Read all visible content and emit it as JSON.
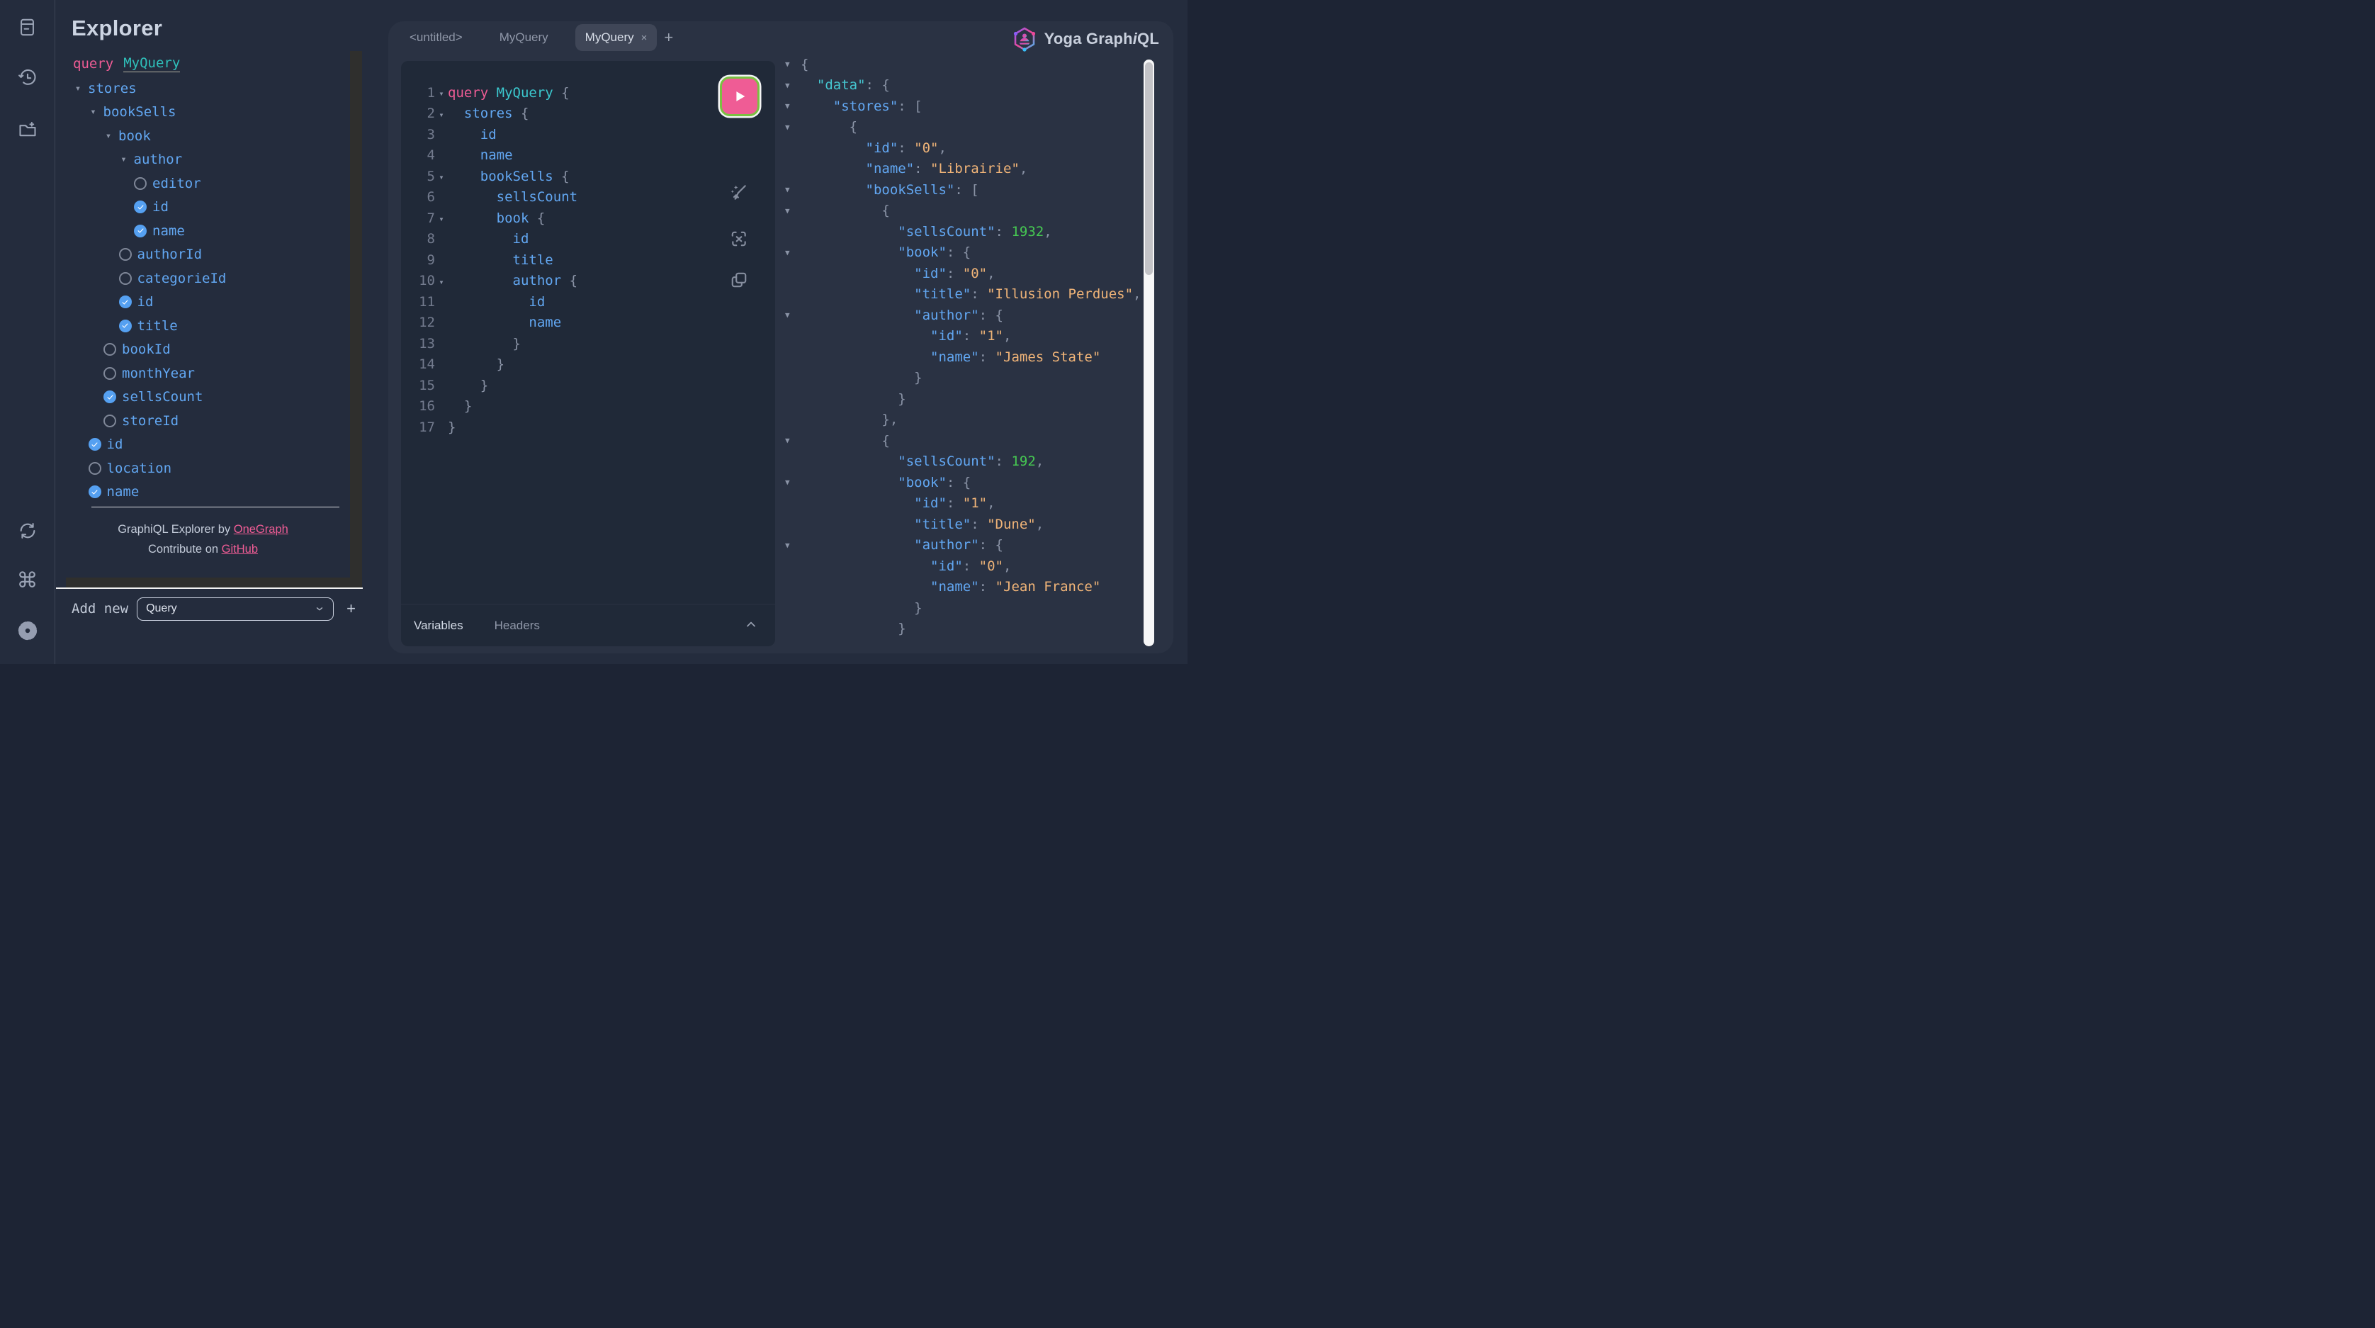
{
  "colors": {
    "accent_pink": "#ef5c95",
    "teal": "#3bc9cf",
    "field_blue": "#62a7f2",
    "string_orange": "#f0b478",
    "number_green": "#46c952",
    "punctuation_gray": "#8a93a6",
    "checkbox_blue": "#55a0f1",
    "run_border_green": "#7ac142",
    "page_bg": "#242c3d",
    "panel_bg": "#202938"
  },
  "sidebar": {
    "icons": [
      {
        "name": "docs-icon"
      },
      {
        "name": "history-icon"
      },
      {
        "name": "folder-add-icon"
      },
      {
        "name": "refetch-icon"
      },
      {
        "name": "shortcut-keys-icon"
      },
      {
        "name": "settings-icon"
      }
    ]
  },
  "explorer": {
    "title": "Explorer",
    "operation": {
      "keyword": "query",
      "name": "MyQuery"
    },
    "tree": [
      {
        "control": "caret",
        "label": "stores",
        "level": 0
      },
      {
        "control": "caret",
        "label": "bookSells",
        "level": 1
      },
      {
        "control": "caret",
        "label": "book",
        "level": 2
      },
      {
        "control": "caret",
        "label": "author",
        "level": 3
      },
      {
        "control": "unchecked",
        "label": "editor",
        "level": 4
      },
      {
        "control": "checked",
        "label": "id",
        "level": 4
      },
      {
        "control": "checked",
        "label": "name",
        "level": 4
      },
      {
        "control": "unchecked",
        "label": "authorId",
        "level": 3
      },
      {
        "control": "unchecked",
        "label": "categorieId",
        "level": 3
      },
      {
        "control": "checked",
        "label": "id",
        "level": 3
      },
      {
        "control": "checked",
        "label": "title",
        "level": 3
      },
      {
        "control": "unchecked",
        "label": "bookId",
        "level": 2
      },
      {
        "control": "unchecked",
        "label": "monthYear",
        "level": 2
      },
      {
        "control": "checked",
        "label": "sellsCount",
        "level": 2
      },
      {
        "control": "unchecked",
        "label": "storeId",
        "level": 2
      },
      {
        "control": "checked",
        "label": "id",
        "level": 1
      },
      {
        "control": "unchecked",
        "label": "location",
        "level": 1
      },
      {
        "control": "checked",
        "label": "name",
        "level": 1
      }
    ],
    "footer": {
      "by_text": "GraphiQL Explorer by ",
      "by_link": "OneGraph",
      "contrib_text": "Contribute on ",
      "contrib_link": "GitHub"
    },
    "add_new": {
      "label": "Add new",
      "selected_option": "Query",
      "plus_label": "+"
    }
  },
  "session": {
    "tabs": [
      {
        "label": "<untitled>",
        "active": false,
        "closable": false
      },
      {
        "label": "MyQuery",
        "active": false,
        "closable": false
      },
      {
        "label": "MyQuery",
        "active": true,
        "closable": true,
        "close_glyph": "×"
      }
    ],
    "new_tab_label": "+",
    "logo": {
      "prefix": "Yoga Graph",
      "italic": "i",
      "suffix": "QL"
    },
    "secondary": {
      "variables": "Variables",
      "headers": "Headers"
    }
  },
  "editor": {
    "lines": [
      {
        "num": 1,
        "caret": true,
        "tokens": [
          [
            "kw",
            "query"
          ],
          [
            "op",
            " MyQuery"
          ],
          [
            "p",
            " {"
          ]
        ]
      },
      {
        "num": 2,
        "caret": true,
        "tokens": [
          [
            "f",
            "  stores"
          ],
          [
            "p",
            " {"
          ]
        ]
      },
      {
        "num": 3,
        "caret": false,
        "tokens": [
          [
            "f",
            "    id"
          ]
        ]
      },
      {
        "num": 4,
        "caret": false,
        "tokens": [
          [
            "f",
            "    name"
          ]
        ]
      },
      {
        "num": 5,
        "caret": true,
        "tokens": [
          [
            "f",
            "    bookSells"
          ],
          [
            "p",
            " {"
          ]
        ]
      },
      {
        "num": 6,
        "caret": false,
        "tokens": [
          [
            "f",
            "      sellsCount"
          ]
        ]
      },
      {
        "num": 7,
        "caret": true,
        "tokens": [
          [
            "f",
            "      book"
          ],
          [
            "p",
            " {"
          ]
        ]
      },
      {
        "num": 8,
        "caret": false,
        "tokens": [
          [
            "f",
            "        id"
          ]
        ]
      },
      {
        "num": 9,
        "caret": false,
        "tokens": [
          [
            "f",
            "        title"
          ]
        ]
      },
      {
        "num": 10,
        "caret": true,
        "tokens": [
          [
            "f",
            "        author"
          ],
          [
            "p",
            " {"
          ]
        ]
      },
      {
        "num": 11,
        "caret": false,
        "tokens": [
          [
            "f",
            "          id"
          ]
        ]
      },
      {
        "num": 12,
        "caret": false,
        "tokens": [
          [
            "f",
            "          name"
          ]
        ]
      },
      {
        "num": 13,
        "caret": false,
        "tokens": [
          [
            "p",
            "        }"
          ]
        ]
      },
      {
        "num": 14,
        "caret": false,
        "tokens": [
          [
            "p",
            "      }"
          ]
        ]
      },
      {
        "num": 15,
        "caret": false,
        "tokens": [
          [
            "p",
            "    }"
          ]
        ]
      },
      {
        "num": 16,
        "caret": false,
        "tokens": [
          [
            "p",
            "  }"
          ]
        ]
      },
      {
        "num": 17,
        "caret": false,
        "tokens": [
          [
            "p",
            "}"
          ]
        ]
      }
    ]
  },
  "response": {
    "lines": [
      {
        "caret": true,
        "tokens": [
          [
            "p",
            "{"
          ]
        ]
      },
      {
        "caret": true,
        "tokens": [
          [
            "kc",
            "  \"data\""
          ],
          [
            "p",
            ": {"
          ]
        ]
      },
      {
        "caret": true,
        "tokens": [
          [
            "k",
            "    \"stores\""
          ],
          [
            "p",
            ": ["
          ]
        ]
      },
      {
        "caret": true,
        "tokens": [
          [
            "p",
            "      {"
          ]
        ]
      },
      {
        "caret": false,
        "tokens": [
          [
            "k",
            "        \"id\""
          ],
          [
            "p",
            ": "
          ],
          [
            "s",
            "\"0\""
          ],
          [
            "p",
            ","
          ]
        ]
      },
      {
        "caret": false,
        "tokens": [
          [
            "k",
            "        \"name\""
          ],
          [
            "p",
            ": "
          ],
          [
            "s",
            "\"Librairie\""
          ],
          [
            "p",
            ","
          ]
        ]
      },
      {
        "caret": true,
        "tokens": [
          [
            "k",
            "        \"bookSells\""
          ],
          [
            "p",
            ": ["
          ]
        ]
      },
      {
        "caret": true,
        "tokens": [
          [
            "p",
            "          {"
          ]
        ]
      },
      {
        "caret": false,
        "tokens": [
          [
            "k",
            "            \"sellsCount\""
          ],
          [
            "p",
            ": "
          ],
          [
            "n",
            "1932"
          ],
          [
            "p",
            ","
          ]
        ]
      },
      {
        "caret": true,
        "tokens": [
          [
            "k",
            "            \"book\""
          ],
          [
            "p",
            ": {"
          ]
        ]
      },
      {
        "caret": false,
        "tokens": [
          [
            "k",
            "              \"id\""
          ],
          [
            "p",
            ": "
          ],
          [
            "s",
            "\"0\""
          ],
          [
            "p",
            ","
          ]
        ]
      },
      {
        "caret": false,
        "tokens": [
          [
            "k",
            "              \"title\""
          ],
          [
            "p",
            ": "
          ],
          [
            "s",
            "\"Illusion Perdues\""
          ],
          [
            "p",
            ","
          ]
        ]
      },
      {
        "caret": true,
        "tokens": [
          [
            "k",
            "              \"author\""
          ],
          [
            "p",
            ": {"
          ]
        ]
      },
      {
        "caret": false,
        "tokens": [
          [
            "k",
            "                \"id\""
          ],
          [
            "p",
            ": "
          ],
          [
            "s",
            "\"1\""
          ],
          [
            "p",
            ","
          ]
        ]
      },
      {
        "caret": false,
        "tokens": [
          [
            "k",
            "                \"name\""
          ],
          [
            "p",
            ": "
          ],
          [
            "s",
            "\"James State\""
          ]
        ]
      },
      {
        "caret": false,
        "tokens": [
          [
            "p",
            "              }"
          ]
        ]
      },
      {
        "caret": false,
        "tokens": [
          [
            "p",
            "            }"
          ]
        ]
      },
      {
        "caret": false,
        "tokens": [
          [
            "p",
            "          },"
          ]
        ]
      },
      {
        "caret": true,
        "tokens": [
          [
            "p",
            "          {"
          ]
        ]
      },
      {
        "caret": false,
        "tokens": [
          [
            "k",
            "            \"sellsCount\""
          ],
          [
            "p",
            ": "
          ],
          [
            "n",
            "192"
          ],
          [
            "p",
            ","
          ]
        ]
      },
      {
        "caret": true,
        "tokens": [
          [
            "k",
            "            \"book\""
          ],
          [
            "p",
            ": {"
          ]
        ]
      },
      {
        "caret": false,
        "tokens": [
          [
            "k",
            "              \"id\""
          ],
          [
            "p",
            ": "
          ],
          [
            "s",
            "\"1\""
          ],
          [
            "p",
            ","
          ]
        ]
      },
      {
        "caret": false,
        "tokens": [
          [
            "k",
            "              \"title\""
          ],
          [
            "p",
            ": "
          ],
          [
            "s",
            "\"Dune\""
          ],
          [
            "p",
            ","
          ]
        ]
      },
      {
        "caret": true,
        "tokens": [
          [
            "k",
            "              \"author\""
          ],
          [
            "p",
            ": {"
          ]
        ]
      },
      {
        "caret": false,
        "tokens": [
          [
            "k",
            "                \"id\""
          ],
          [
            "p",
            ": "
          ],
          [
            "s",
            "\"0\""
          ],
          [
            "p",
            ","
          ]
        ]
      },
      {
        "caret": false,
        "tokens": [
          [
            "k",
            "                \"name\""
          ],
          [
            "p",
            ": "
          ],
          [
            "s",
            "\"Jean France\""
          ]
        ]
      },
      {
        "caret": false,
        "tokens": [
          [
            "p",
            "              }"
          ]
        ]
      },
      {
        "caret": false,
        "tokens": [
          [
            "p",
            "            }"
          ]
        ]
      }
    ]
  }
}
